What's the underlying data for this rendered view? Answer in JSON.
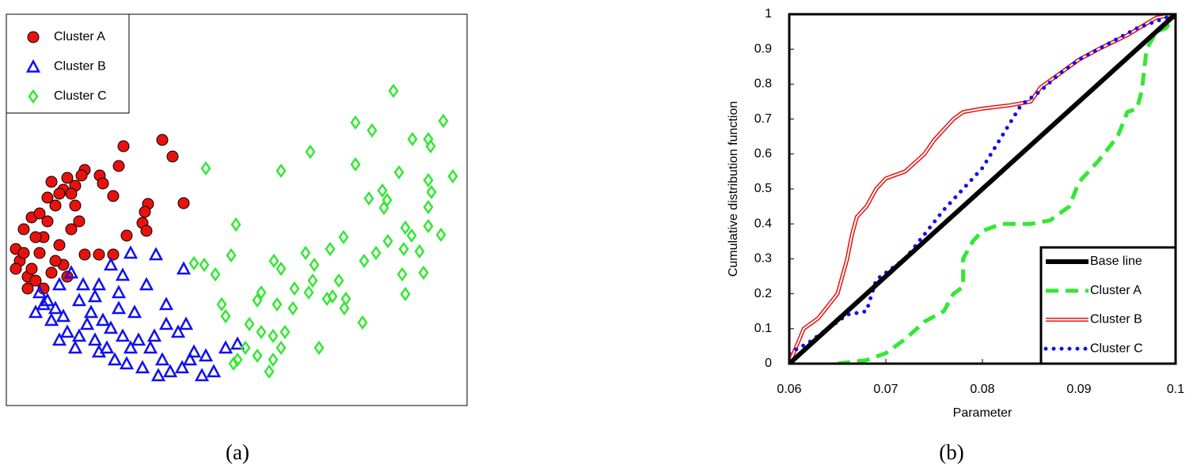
{
  "chart_data": [
    {
      "type": "scatter",
      "caption": "(a)",
      "xlim": [
        0,
        582
      ],
      "ylim": [
        0,
        495
      ],
      "legend": "upper left",
      "series": [
        {
          "name": "Cluster A",
          "color": "#e8120c",
          "marker": "circle",
          "x": [
            197,
            148,
            210,
            142,
            99,
            95,
            118,
            122,
            77,
            72,
            87,
            135,
            224,
            179,
            175,
            152,
            172,
            177,
            117,
            135,
            99,
            12,
            17,
            27,
            32,
            47,
            52,
            62,
            82,
            67,
            42,
            37,
            57,
            72,
            27,
            47,
            22,
            32,
            52,
            67,
            87,
            92,
            37,
            62,
            77,
            12,
            22,
            42,
            57,
            82
          ],
          "values": [
            336,
            328,
            315,
            303,
            298,
            291,
            291,
            281,
            288,
            273,
            278,
            265,
            256,
            255,
            245,
            215,
            231,
            221,
            191,
            191,
            191,
            198,
            183,
            163,
            173,
            213,
            233,
            253,
            223,
            203,
            193,
            158,
            168,
            178,
            148,
            148,
            223,
            238,
            263,
            268,
            253,
            233,
            213,
            183,
            163,
            173,
            193,
            243,
            283,
            268
          ]
        },
        {
          "name": "Cluster B",
          "color": "#1010f0",
          "marker": "triangle",
          "x": [
            157,
            189,
            224,
            132,
            147,
            82,
            67,
            42,
            52,
            92,
            112,
            177,
            202,
            162,
            142,
            122,
            102,
            77,
            67,
            87,
            117,
            137,
            152,
            172,
            192,
            207,
            222,
            247,
            262,
            277,
            292,
            237,
            227,
            217,
            187,
            167,
            147,
            132,
            112,
            92,
            72,
            57,
            37,
            47,
            62,
            107,
            127,
            197,
            232,
            252,
            182,
            157,
            202,
            97,
            117,
            142
          ],
          "values": [
            193,
            191,
            173,
            178,
            165,
            168,
            153,
            143,
            133,
            133,
            138,
            153,
            128,
            118,
            123,
            108,
            103,
            93,
            83,
            73,
            68,
            58,
            53,
            48,
            38,
            43,
            48,
            38,
            43,
            73,
            78,
            68,
            103,
            93,
            88,
            83,
            88,
            98,
            83,
            88,
            113,
            108,
            118,
            128,
            123,
            118,
            73,
            58,
            58,
            63,
            73,
            73,
            103,
            153,
            153,
            143
          ]
        },
        {
          "name": "Cluster C",
          "color": "#33e833",
          "marker": "diamond",
          "x": [
            489,
            441,
            462,
            552,
            513,
            533,
            536,
            384,
            252,
            347,
            441,
            496,
            533,
            564,
            537,
            475,
            458,
            481,
            533,
            477,
            290,
            504,
            533,
            512,
            549,
            426,
            482,
            452,
            467,
            409,
            378,
            502,
            522,
            284,
            338,
            389,
            237,
            250,
            264,
            387,
            347,
            420,
            500,
            527,
            382,
            364,
            322,
            412,
            429,
            405,
            504,
            272,
            277,
            317,
            342,
            362,
            307,
            322,
            337,
            352,
            302,
            317,
            292,
            337,
            332,
            395,
            450,
            287,
            347,
            427
          ],
          "values": [
            398,
            358,
            348,
            360,
            337,
            337,
            328,
            321,
            300,
            297,
            305,
            295,
            285,
            290,
            270,
            272,
            262,
            260,
            251,
            250,
            229,
            225,
            227,
            215,
            216,
            213,
            208,
            183,
            193,
            198,
            193,
            198,
            195,
            190,
            183,
            178,
            180,
            178,
            166,
            158,
            173,
            158,
            166,
            168,
            143,
            148,
            143,
            138,
            135,
            135,
            141,
            128,
            113,
            133,
            128,
            123,
            103,
            93,
            88,
            93,
            73,
            63,
            58,
            58,
            43,
            73,
            105,
            53,
            73,
            123
          ]
        }
      ]
    },
    {
      "type": "line",
      "caption": "(b)",
      "xlabel": "Parameter",
      "ylabel": "Cumulative distribution function",
      "xlim": [
        0.06,
        0.1
      ],
      "ylim": [
        0,
        1
      ],
      "xticks": [
        0.06,
        0.07,
        0.08,
        0.09,
        0.1
      ],
      "yticks": [
        0,
        0.1,
        0.2,
        0.3,
        0.4,
        0.5,
        0.6,
        0.7,
        0.8,
        0.9,
        1
      ],
      "legend": "lower right",
      "series": [
        {
          "name": "Base line",
          "color": "#000000",
          "style": "solid",
          "x": [
            0.06,
            0.1
          ],
          "values": [
            0,
            1
          ]
        },
        {
          "name": "Cluster A",
          "color": "#33e833",
          "style": "dashed",
          "x": [
            0.065,
            0.068,
            0.07,
            0.072,
            0.074,
            0.076,
            0.077,
            0.078,
            0.078,
            0.079,
            0.08,
            0.082,
            0.085,
            0.087,
            0.089,
            0.09,
            0.092,
            0.094,
            0.095,
            0.096,
            0.0965,
            0.097,
            0.098,
            0.099,
            0.1
          ],
          "values": [
            0,
            0.01,
            0.03,
            0.07,
            0.12,
            0.15,
            0.2,
            0.22,
            0.3,
            0.35,
            0.38,
            0.4,
            0.4,
            0.41,
            0.45,
            0.52,
            0.58,
            0.65,
            0.72,
            0.73,
            0.78,
            0.9,
            0.95,
            0.96,
            1
          ]
        },
        {
          "name": "Cluster B",
          "color": "#e8120c",
          "style": "double",
          "x": [
            0.06,
            0.0615,
            0.063,
            0.065,
            0.066,
            0.0665,
            0.067,
            0.068,
            0.069,
            0.07,
            0.072,
            0.074,
            0.075,
            0.076,
            0.077,
            0.078,
            0.08,
            0.083,
            0.085,
            0.086,
            0.088,
            0.09,
            0.092,
            0.095,
            0.098,
            0.1
          ],
          "values": [
            0,
            0.1,
            0.13,
            0.2,
            0.3,
            0.37,
            0.42,
            0.45,
            0.5,
            0.53,
            0.55,
            0.6,
            0.64,
            0.67,
            0.7,
            0.72,
            0.73,
            0.74,
            0.75,
            0.79,
            0.83,
            0.87,
            0.9,
            0.94,
            0.99,
            1
          ]
        },
        {
          "name": "Cluster C",
          "color": "#1010f0",
          "style": "dotted",
          "x": [
            0.06,
            0.062,
            0.064,
            0.066,
            0.068,
            0.069,
            0.07,
            0.072,
            0.074,
            0.076,
            0.078,
            0.08,
            0.082,
            0.084,
            0.086,
            0.088,
            0.09,
            0.092,
            0.094,
            0.096,
            0.098,
            0.1
          ],
          "values": [
            0.03,
            0.06,
            0.1,
            0.14,
            0.15,
            0.24,
            0.26,
            0.3,
            0.37,
            0.44,
            0.5,
            0.56,
            0.65,
            0.74,
            0.78,
            0.83,
            0.87,
            0.9,
            0.93,
            0.96,
            0.98,
            1
          ]
        }
      ]
    }
  ]
}
